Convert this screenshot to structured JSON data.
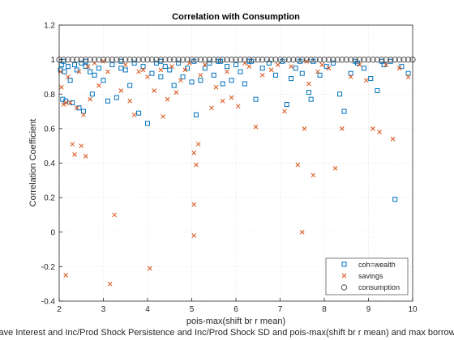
{
  "chart_data": {
    "type": "scatter",
    "title": "Correlation with Consumption",
    "xlabel": "pois-max(shift br r mean)",
    "ylabel": "Correlation Coefficient",
    "footer_label": "ave Interest and Inc/Prod Shock Persistence and Inc/Prod Shock SD and pois-max(shift br r mean) and max borrow",
    "xlim": [
      2,
      10
    ],
    "ylim": [
      -0.4,
      1.2
    ],
    "xticks": [
      "2",
      "3",
      "4",
      "5",
      "6",
      "7",
      "8",
      "9",
      "10"
    ],
    "yticks": [
      "-0.4",
      "-0.2",
      "0",
      "0.2",
      "0.4",
      "0.6",
      "0.8",
      "1",
      "1.2"
    ],
    "grid": true,
    "legend_position": "bottom-right",
    "series": [
      {
        "name": "coh=wealth",
        "marker": "square",
        "color": "#0072bd",
        "x": [
          2.03,
          2.05,
          2.08,
          2.12,
          2.15,
          2.2,
          2.25,
          2.3,
          2.35,
          2.4,
          2.45,
          2.5,
          2.55,
          2.6,
          2.7,
          2.75,
          2.8,
          2.9,
          3.0,
          3.1,
          3.2,
          3.3,
          3.4,
          3.5,
          3.6,
          3.7,
          3.8,
          3.9,
          4.0,
          4.1,
          4.2,
          4.3,
          4.4,
          4.5,
          4.6,
          4.7,
          4.8,
          4.9,
          5.0,
          5.05,
          5.1,
          5.2,
          5.3,
          5.4,
          5.5,
          5.6,
          5.7,
          5.8,
          5.9,
          6.0,
          6.1,
          6.2,
          6.3,
          6.45,
          6.6,
          6.75,
          6.9,
          7.05,
          7.15,
          7.25,
          7.35,
          7.5,
          7.65,
          7.7,
          7.75,
          7.9,
          8.05,
          8.2,
          8.35,
          8.45,
          8.6,
          8.75,
          8.9,
          9.05,
          9.2,
          9.35,
          9.5,
          9.6,
          9.75,
          9.9,
          2.1,
          2.6,
          3.4,
          4.3,
          5.65,
          6.35,
          7.45,
          8.7,
          9.3
        ],
        "values": [
          0.94,
          0.97,
          0.77,
          0.93,
          0.76,
          0.96,
          0.88,
          0.75,
          0.97,
          0.94,
          0.72,
          0.98,
          0.7,
          0.96,
          0.93,
          0.8,
          0.91,
          0.95,
          0.88,
          0.76,
          0.97,
          0.78,
          0.95,
          0.94,
          0.85,
          0.98,
          0.69,
          0.96,
          0.63,
          0.92,
          0.98,
          0.9,
          0.96,
          0.94,
          0.85,
          0.98,
          0.9,
          0.95,
          0.87,
          0.99,
          0.68,
          0.88,
          0.95,
          0.98,
          0.91,
          0.99,
          0.86,
          0.96,
          0.88,
          0.97,
          0.93,
          0.86,
          0.99,
          0.77,
          0.95,
          0.98,
          0.91,
          0.99,
          0.74,
          0.89,
          0.95,
          0.92,
          0.81,
          0.77,
          0.99,
          0.91,
          0.96,
          0.98,
          0.8,
          0.7,
          0.92,
          0.98,
          0.95,
          0.89,
          0.82,
          0.97,
          0.99,
          0.19,
          0.96,
          0.92,
          0.99,
          0.99,
          0.99,
          0.99,
          0.99,
          0.99,
          0.99,
          0.99,
          0.99
        ]
      },
      {
        "name": "savings",
        "marker": "x",
        "color": "#d95319",
        "x": [
          2.03,
          2.05,
          2.1,
          2.15,
          2.2,
          2.25,
          2.3,
          2.35,
          2.4,
          2.45,
          2.5,
          2.55,
          2.6,
          2.65,
          2.7,
          2.8,
          2.9,
          3.0,
          3.1,
          3.15,
          3.25,
          3.4,
          3.5,
          3.6,
          3.7,
          3.8,
          3.9,
          4.0,
          4.05,
          4.15,
          4.3,
          4.35,
          4.45,
          4.55,
          4.65,
          4.75,
          4.85,
          4.95,
          5.05,
          5.05,
          5.1,
          5.15,
          5.2,
          5.3,
          5.45,
          5.55,
          5.7,
          5.8,
          5.9,
          6.05,
          6.2,
          6.3,
          6.45,
          6.6,
          6.8,
          6.95,
          7.1,
          7.25,
          7.4,
          7.55,
          7.6,
          7.65,
          7.75,
          7.85,
          7.95,
          8.1,
          8.25,
          8.4,
          8.6,
          8.8,
          8.95,
          9.1,
          9.25,
          9.4,
          9.55,
          9.7,
          9.9,
          2.15,
          5.05,
          7.5,
          9.6
        ],
        "values": [
          0.93,
          0.84,
          0.74,
          0.75,
          0.9,
          0.75,
          0.51,
          0.45,
          0.72,
          0.93,
          0.5,
          0.68,
          0.44,
          0.96,
          0.77,
          0.98,
          0.85,
          0.99,
          0.93,
          -0.3,
          0.1,
          0.82,
          0.97,
          0.76,
          0.68,
          0.93,
          0.94,
          0.9,
          -0.21,
          0.82,
          0.94,
          0.67,
          0.77,
          0.96,
          0.81,
          0.88,
          0.94,
          0.98,
          0.16,
          0.46,
          0.39,
          0.51,
          0.91,
          0.97,
          0.72,
          0.84,
          0.76,
          0.93,
          0.78,
          0.73,
          0.98,
          0.96,
          0.61,
          0.91,
          0.94,
          0.97,
          0.7,
          0.96,
          0.39,
          0.6,
          0.99,
          0.86,
          0.33,
          0.93,
          0.97,
          0.95,
          0.37,
          0.6,
          0.9,
          0.97,
          0.88,
          0.6,
          0.58,
          0.97,
          0.54,
          0.95,
          0.9,
          -0.25,
          -0.02,
          0.0,
          -0.17
        ]
      },
      {
        "name": "consumption",
        "marker": "circle",
        "color": "#555555",
        "x": [
          2.0,
          2.1,
          2.2,
          2.3,
          2.4,
          2.5,
          2.6,
          2.7,
          2.8,
          2.9,
          3.0,
          3.1,
          3.2,
          3.3,
          3.4,
          3.5,
          3.6,
          3.7,
          3.8,
          3.9,
          4.0,
          4.1,
          4.2,
          4.3,
          4.4,
          4.5,
          4.6,
          4.7,
          4.8,
          4.9,
          5.0,
          5.1,
          5.2,
          5.3,
          5.4,
          5.5,
          5.6,
          5.7,
          5.8,
          5.9,
          6.0,
          6.1,
          6.2,
          6.3,
          6.4,
          6.5,
          6.6,
          6.7,
          6.8,
          6.9,
          7.0,
          7.1,
          7.2,
          7.3,
          7.4,
          7.5,
          7.6,
          7.7,
          7.8,
          7.9,
          8.0,
          8.1,
          8.2,
          8.3,
          8.4,
          8.5,
          8.6,
          8.7,
          8.8,
          8.9,
          9.0,
          9.1,
          9.2,
          9.3,
          9.4,
          9.5,
          9.6,
          9.7,
          9.8,
          9.9,
          10.0
        ],
        "values": [
          1,
          1,
          1,
          1,
          1,
          1,
          1,
          1,
          1,
          1,
          1,
          1,
          1,
          1,
          1,
          1,
          1,
          1,
          1,
          1,
          1,
          1,
          1,
          1,
          1,
          1,
          1,
          1,
          1,
          1,
          1,
          1,
          1,
          1,
          1,
          1,
          1,
          1,
          1,
          1,
          1,
          1,
          1,
          1,
          1,
          1,
          1,
          1,
          1,
          1,
          1,
          1,
          1,
          1,
          1,
          1,
          1,
          1,
          1,
          1,
          1,
          1,
          1,
          1,
          1,
          1,
          1,
          1,
          1,
          1,
          1,
          1,
          1,
          1,
          1,
          1,
          1,
          1,
          1,
          1,
          1
        ]
      }
    ]
  }
}
